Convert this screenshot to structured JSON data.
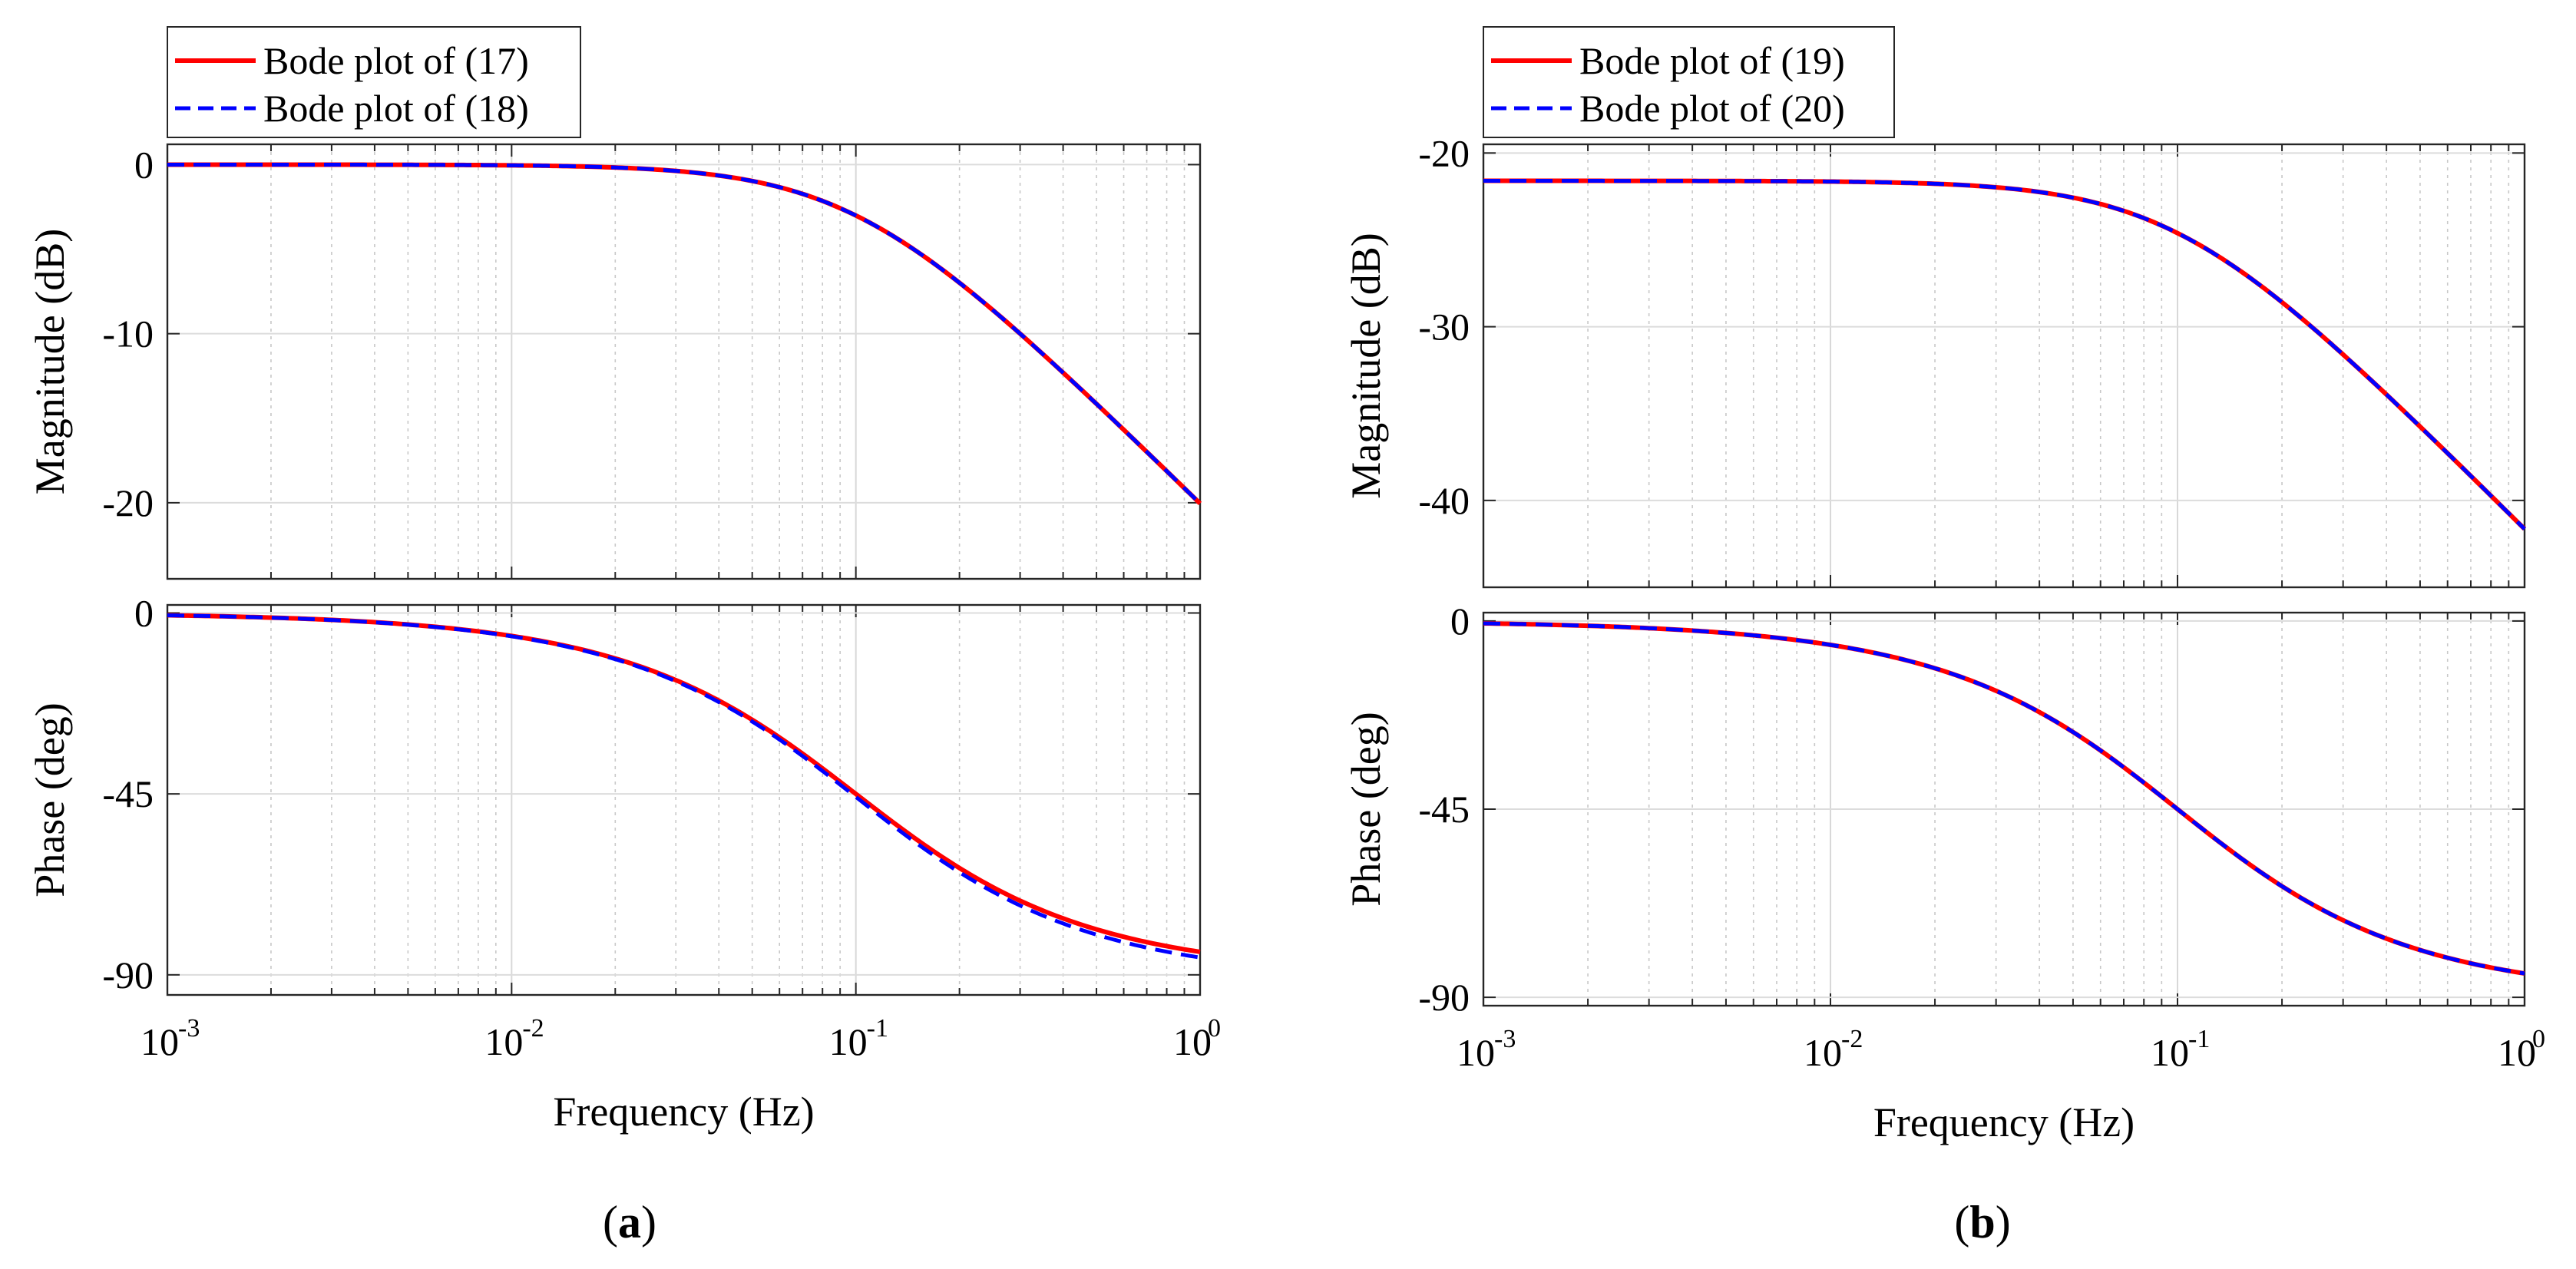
{
  "chart_data": [
    {
      "id": "a",
      "type": "line",
      "caption_letter": "a",
      "xlabel": "Frequency  (Hz)",
      "xscale": "log",
      "xlim": [
        0.001,
        1
      ],
      "x_tick_labels": [
        {
          "base": "10",
          "exp": "-3",
          "value": 0.001
        },
        {
          "base": "10",
          "exp": "-2",
          "value": 0.01
        },
        {
          "base": "10",
          "exp": "-1",
          "value": 0.1
        },
        {
          "base": "10",
          "exp": "0",
          "value": 1
        }
      ],
      "legend_position": "top-left-outside",
      "magnitude": {
        "ylabel": "Magnitude (dB)",
        "ylim": [
          -24.5,
          1.2
        ],
        "yticks": [
          0,
          -10,
          -20
        ],
        "ytick_labels": [
          "0",
          "-10",
          "-20"
        ],
        "grid": true,
        "series": [
          {
            "name": "Bode plot of (17)",
            "color": "#ff0000",
            "style": "solid",
            "model": {
              "gain_db": 0,
              "fc": 0.1,
              "phase_end": -90
            }
          },
          {
            "name": "Bode plot of (18)",
            "color": "#0000ff",
            "style": "dashed",
            "model": {
              "gain_db": 0,
              "fc": 0.1,
              "phase_end": -91.5
            }
          }
        ]
      },
      "phase": {
        "ylabel": "Phase (deg)",
        "ylim": [
          -95,
          2
        ],
        "yticks": [
          0,
          -45,
          -90
        ],
        "ytick_labels": [
          "0",
          "-45",
          "-90"
        ],
        "grid": true
      }
    },
    {
      "id": "b",
      "type": "line",
      "caption_letter": "b",
      "xlabel": "Frequency  (Hz)",
      "xscale": "log",
      "xlim": [
        0.001,
        1
      ],
      "x_tick_labels": [
        {
          "base": "10",
          "exp": "-3",
          "value": 0.001
        },
        {
          "base": "10",
          "exp": "-2",
          "value": 0.01
        },
        {
          "base": "10",
          "exp": "-1",
          "value": 0.1
        },
        {
          "base": "10",
          "exp": "0",
          "value": 1
        }
      ],
      "legend_position": "top-left-outside",
      "magnitude": {
        "ylabel": "Magnitude (dB)",
        "ylim": [
          -45,
          -19.5
        ],
        "yticks": [
          -20,
          -30,
          -40
        ],
        "ytick_labels": [
          "-20",
          "-30",
          "-40"
        ],
        "grid": true,
        "series": [
          {
            "name": "Bode plot of (19)",
            "color": "#ff0000",
            "style": "solid",
            "model": {
              "gain_db": -21.6,
              "fc": 0.1,
              "phase_end": -90
            }
          },
          {
            "name": "Bode plot of (20)",
            "color": "#0000ff",
            "style": "dashed",
            "model": {
              "gain_db": -21.6,
              "fc": 0.1,
              "phase_end": -90
            }
          }
        ]
      },
      "phase": {
        "ylabel": "Phase (deg)",
        "ylim": [
          -92,
          2
        ],
        "yticks": [
          0,
          -45,
          -90
        ],
        "ytick_labels": [
          "0",
          "-45",
          "-90"
        ],
        "grid": true
      }
    }
  ]
}
